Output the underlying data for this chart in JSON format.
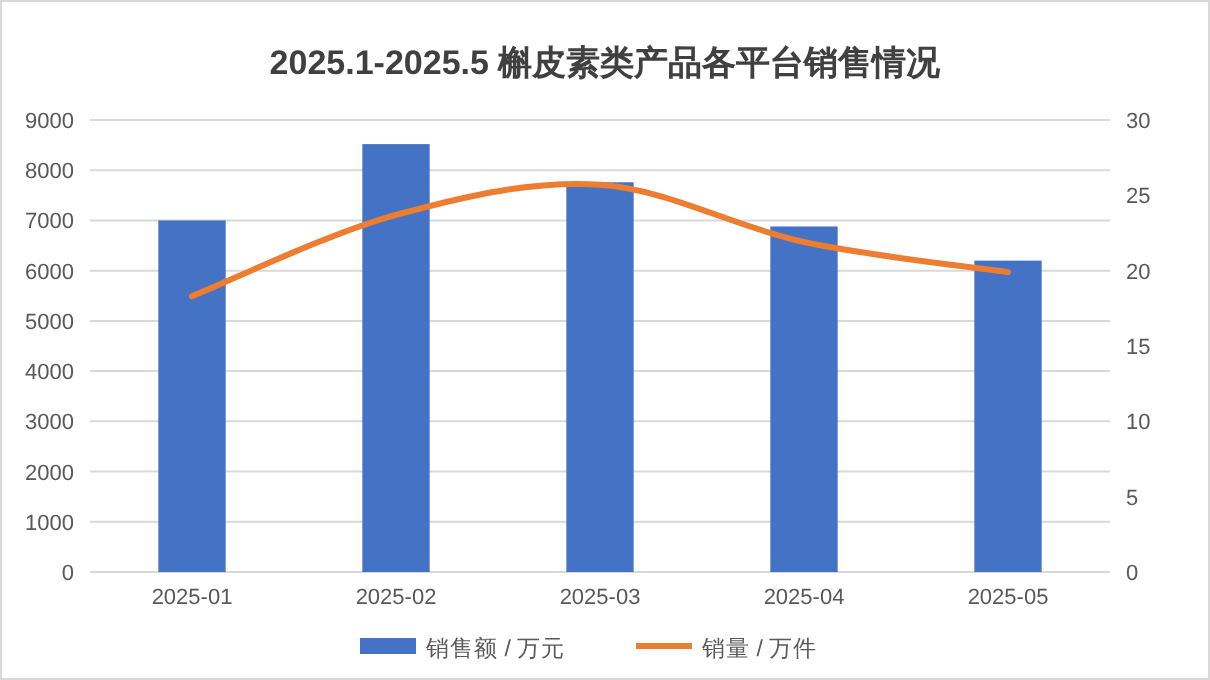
{
  "chart_data": {
    "type": "bar",
    "title": "2025.1-2025.5 槲皮素类产品各平台销售情况",
    "categories": [
      "2025-01",
      "2025-02",
      "2025-03",
      "2025-04",
      "2025-05"
    ],
    "series": [
      {
        "name": "销售额 / 万元",
        "color": "#4472c4",
        "values": [
          7000,
          8520,
          7760,
          6880,
          6200
        ]
      },
      {
        "name": "销量 / 万件",
        "color": "#ed7d31",
        "type": "line",
        "axis": "y2",
        "values": [
          18.3,
          23.7,
          25.7,
          21.9,
          19.9
        ]
      }
    ],
    "ylim": [
      0,
      9000
    ],
    "yticks": [
      0,
      1000,
      2000,
      3000,
      4000,
      5000,
      6000,
      7000,
      8000,
      9000
    ],
    "y2lim": [
      0,
      30
    ],
    "y2ticks": [
      0,
      5,
      10,
      15,
      20,
      25,
      30
    ],
    "grid": "y",
    "legend": "bottom",
    "marker": "none"
  }
}
